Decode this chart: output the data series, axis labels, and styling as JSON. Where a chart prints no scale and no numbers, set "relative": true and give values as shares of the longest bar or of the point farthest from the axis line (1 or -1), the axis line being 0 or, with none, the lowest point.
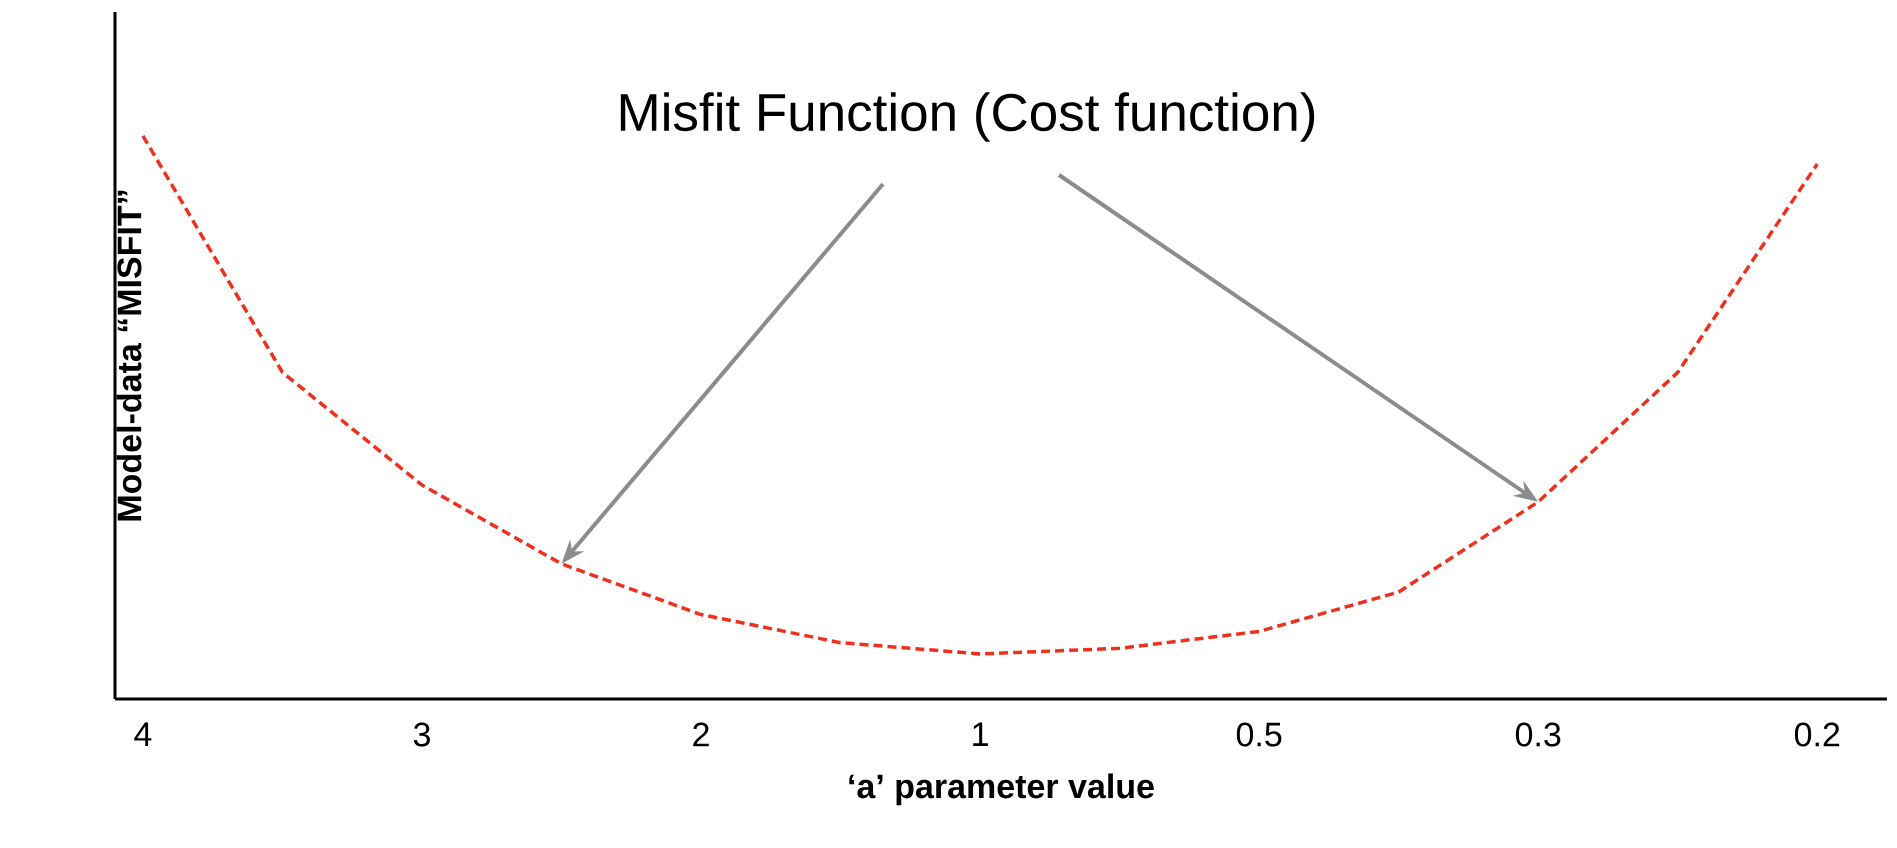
{
  "chart_data": {
    "type": "line",
    "relative": true,
    "categories": [
      "4",
      null,
      "3",
      null,
      "2",
      null,
      "1",
      null,
      "0.5",
      null,
      "0.3",
      null,
      "0.2"
    ],
    "values": [
      1,
      0.58,
      0.38,
      0.24,
      0.15,
      0.1,
      0.08,
      0.09,
      0.12,
      0.19,
      0.35,
      0.58,
      0.95
    ],
    "color": "#f0301e",
    "line_style": "dashed",
    "marker": "none",
    "xlabel": "‘a’ parameter value",
    "ylabel": "Model-data “MISFIT”",
    "annotations": [
      "Misfit Function  (Cost function)"
    ]
  }
}
